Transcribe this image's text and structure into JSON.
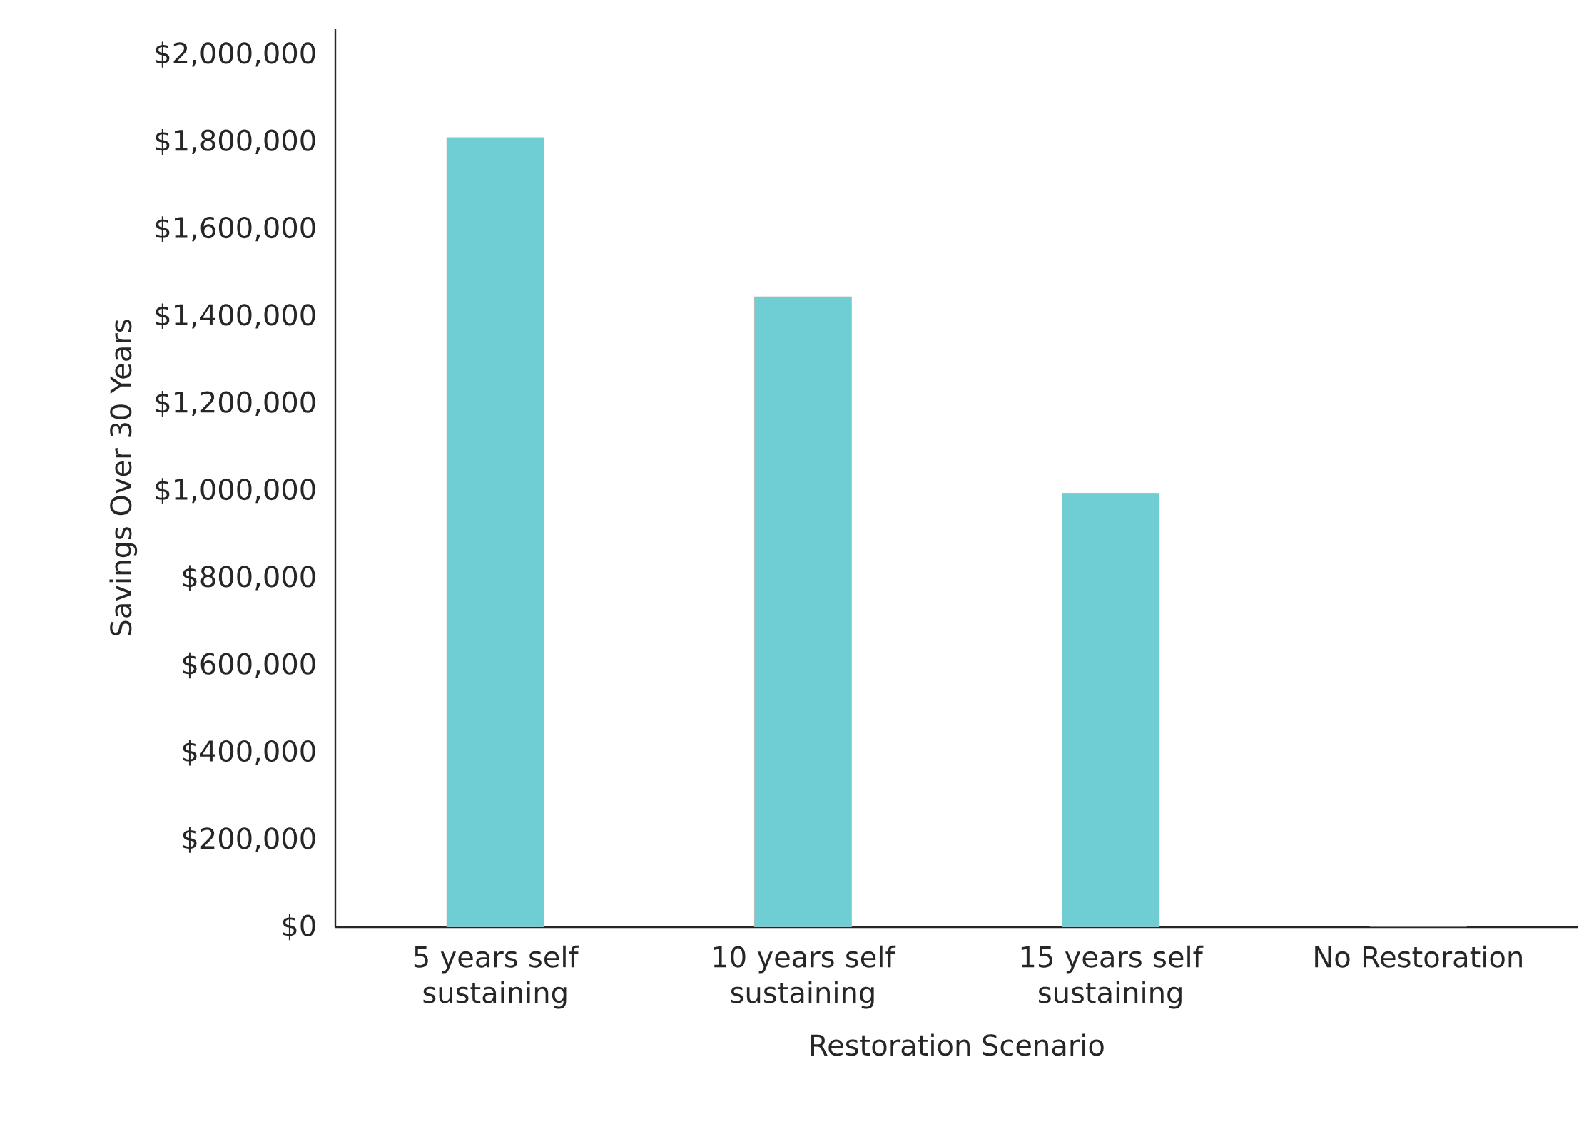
{
  "chart_data": {
    "type": "bar",
    "xlabel": "Restoration Scenario",
    "ylabel": "Savings Over 30 Years",
    "categories": [
      "5 years self sustaining",
      "10 years self sustaining",
      "15 years self sustaining",
      "No Restoration"
    ],
    "values": [
      1810000,
      1445000,
      995000,
      0
    ],
    "color": "#6fcdd4",
    "ylim": [
      0,
      2060000
    ],
    "yticks": [
      {
        "value": 0,
        "label": "$0"
      },
      {
        "value": 200000,
        "label": "$200,000"
      },
      {
        "value": 400000,
        "label": "$400,000"
      },
      {
        "value": 600000,
        "label": "$600,000"
      },
      {
        "value": 800000,
        "label": "$800,000"
      },
      {
        "value": 1000000,
        "label": "$1,000,000"
      },
      {
        "value": 1200000,
        "label": "$1,200,000"
      },
      {
        "value": 1400000,
        "label": "$1,400,000"
      },
      {
        "value": 1600000,
        "label": "$1,600,000"
      },
      {
        "value": 1800000,
        "label": "$1,800,000"
      },
      {
        "value": 2000000,
        "label": "$2,000,000"
      }
    ],
    "grid": false
  }
}
